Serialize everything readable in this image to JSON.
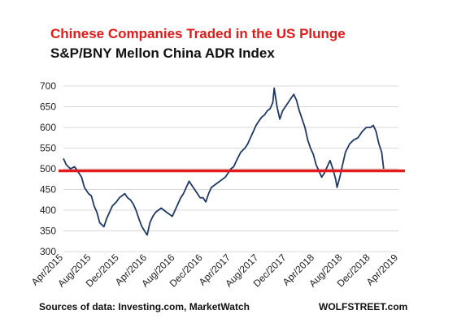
{
  "title": "Chinese Companies Traded in the US Plunge",
  "subtitle": "S&P/BNY Mellon China ADR Index",
  "source": "Sources of data: Investing.com, MarketWatch",
  "brand": "WOLFSTREET.com",
  "colors": {
    "line": "#1f3864",
    "reference": "#e31b1b",
    "grid": "#d9d9d9",
    "title": "#e01b1b"
  },
  "chart_data": {
    "type": "line",
    "title": "Chinese Companies Traded in the US Plunge",
    "subtitle": "S&P/BNY Mellon China ADR Index",
    "xlabel": "",
    "ylabel": "",
    "ylim": [
      300,
      700
    ],
    "yticks": [
      300,
      350,
      400,
      450,
      500,
      550,
      600,
      650,
      700
    ],
    "xticks": [
      "Apr/2015",
      "Aug/2015",
      "Dec/2015",
      "Apr/2016",
      "Aug/2016",
      "Dec/2016",
      "Apr/2017",
      "Aug/2017",
      "Dec/2017",
      "Apr/2018",
      "Aug/2018",
      "Dec/2018",
      "Apr/2019"
    ],
    "grid": "horizontal",
    "reference_line": {
      "y": 495,
      "color": "#e31b1b"
    },
    "series": [
      {
        "values": [
          [
            0.0,
            525
          ],
          [
            0.1,
            510
          ],
          [
            0.25,
            500
          ],
          [
            0.4,
            505
          ],
          [
            0.55,
            490
          ],
          [
            0.65,
            480
          ],
          [
            0.75,
            455
          ],
          [
            0.9,
            440
          ],
          [
            1.0,
            435
          ],
          [
            1.1,
            410
          ],
          [
            1.2,
            395
          ],
          [
            1.3,
            370
          ],
          [
            1.45,
            360
          ],
          [
            1.55,
            380
          ],
          [
            1.65,
            395
          ],
          [
            1.75,
            410
          ],
          [
            1.9,
            420
          ],
          [
            2.0,
            430
          ],
          [
            2.1,
            435
          ],
          [
            2.2,
            440
          ],
          [
            2.3,
            430
          ],
          [
            2.4,
            425
          ],
          [
            2.5,
            415
          ],
          [
            2.6,
            400
          ],
          [
            2.7,
            380
          ],
          [
            2.8,
            362
          ],
          [
            2.95,
            345
          ],
          [
            3.0,
            340
          ],
          [
            3.1,
            370
          ],
          [
            3.2,
            385
          ],
          [
            3.3,
            395
          ],
          [
            3.4,
            400
          ],
          [
            3.5,
            405
          ],
          [
            3.6,
            400
          ],
          [
            3.7,
            395
          ],
          [
            3.8,
            390
          ],
          [
            3.9,
            385
          ],
          [
            4.0,
            400
          ],
          [
            4.1,
            415
          ],
          [
            4.2,
            430
          ],
          [
            4.3,
            440
          ],
          [
            4.4,
            455
          ],
          [
            4.5,
            470
          ],
          [
            4.6,
            460
          ],
          [
            4.7,
            450
          ],
          [
            4.8,
            440
          ],
          [
            4.9,
            430
          ],
          [
            5.0,
            430
          ],
          [
            5.1,
            420
          ],
          [
            5.2,
            440
          ],
          [
            5.3,
            455
          ],
          [
            5.4,
            460
          ],
          [
            5.5,
            465
          ],
          [
            5.6,
            470
          ],
          [
            5.7,
            475
          ],
          [
            5.8,
            480
          ],
          [
            5.9,
            490
          ],
          [
            6.0,
            500
          ],
          [
            6.1,
            505
          ],
          [
            6.2,
            520
          ],
          [
            6.35,
            540
          ],
          [
            6.5,
            550
          ],
          [
            6.6,
            560
          ],
          [
            6.7,
            575
          ],
          [
            6.8,
            590
          ],
          [
            6.9,
            605
          ],
          [
            7.0,
            615
          ],
          [
            7.1,
            625
          ],
          [
            7.2,
            630
          ],
          [
            7.3,
            640
          ],
          [
            7.4,
            645
          ],
          [
            7.5,
            660
          ],
          [
            7.55,
            695
          ],
          [
            7.65,
            650
          ],
          [
            7.75,
            620
          ],
          [
            7.85,
            640
          ],
          [
            7.95,
            650
          ],
          [
            8.05,
            660
          ],
          [
            8.15,
            670
          ],
          [
            8.25,
            680
          ],
          [
            8.35,
            665
          ],
          [
            8.45,
            640
          ],
          [
            8.55,
            620
          ],
          [
            8.65,
            600
          ],
          [
            8.75,
            570
          ],
          [
            8.85,
            550
          ],
          [
            8.95,
            535
          ],
          [
            9.05,
            510
          ],
          [
            9.15,
            495
          ],
          [
            9.25,
            480
          ],
          [
            9.35,
            490
          ],
          [
            9.45,
            505
          ],
          [
            9.55,
            520
          ],
          [
            9.65,
            500
          ],
          [
            9.75,
            475
          ],
          [
            9.8,
            455
          ],
          [
            9.9,
            480
          ],
          [
            10.0,
            510
          ],
          [
            10.1,
            540
          ],
          [
            10.25,
            560
          ],
          [
            10.4,
            570
          ],
          [
            10.55,
            575
          ],
          [
            10.7,
            590
          ],
          [
            10.85,
            600
          ],
          [
            11.0,
            600
          ],
          [
            11.1,
            605
          ],
          [
            11.2,
            590
          ],
          [
            11.3,
            560
          ],
          [
            11.4,
            540
          ],
          [
            11.47,
            500
          ]
        ]
      }
    ]
  }
}
